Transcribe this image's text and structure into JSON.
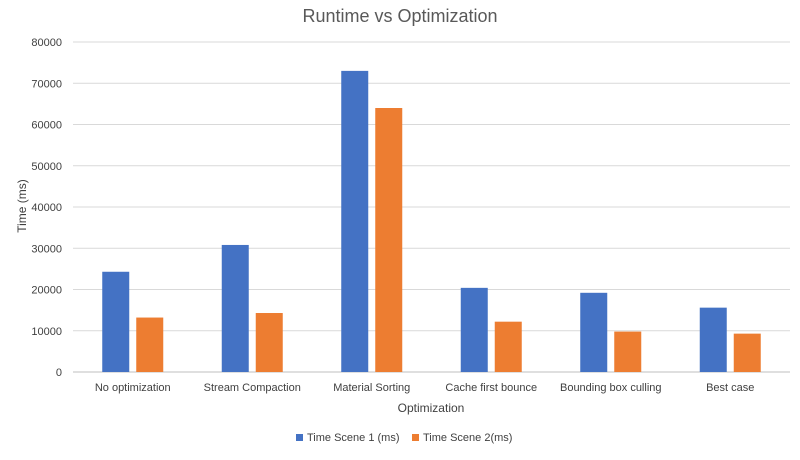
{
  "chart_data": {
    "type": "bar",
    "title": "Runtime vs Optimization",
    "xlabel": "Optimization",
    "ylabel": "Time (ms)",
    "categories": [
      "No optimization",
      "Stream Compaction",
      "Material Sorting",
      "Cache first bounce",
      "Bounding box culling",
      "Best case"
    ],
    "series": [
      {
        "name": "Time Scene 1 (ms)",
        "color": "#4472C4",
        "values": [
          24300,
          30800,
          73000,
          20400,
          19200,
          15600
        ]
      },
      {
        "name": "Time Scene 2(ms)",
        "color": "#ED7D31",
        "values": [
          13200,
          14300,
          64000,
          12200,
          9800,
          9300
        ]
      }
    ],
    "ylim": [
      0,
      80000
    ],
    "yticks": [
      0,
      10000,
      20000,
      30000,
      40000,
      50000,
      60000,
      70000,
      80000
    ],
    "grid": true,
    "legend_position": "bottom"
  }
}
